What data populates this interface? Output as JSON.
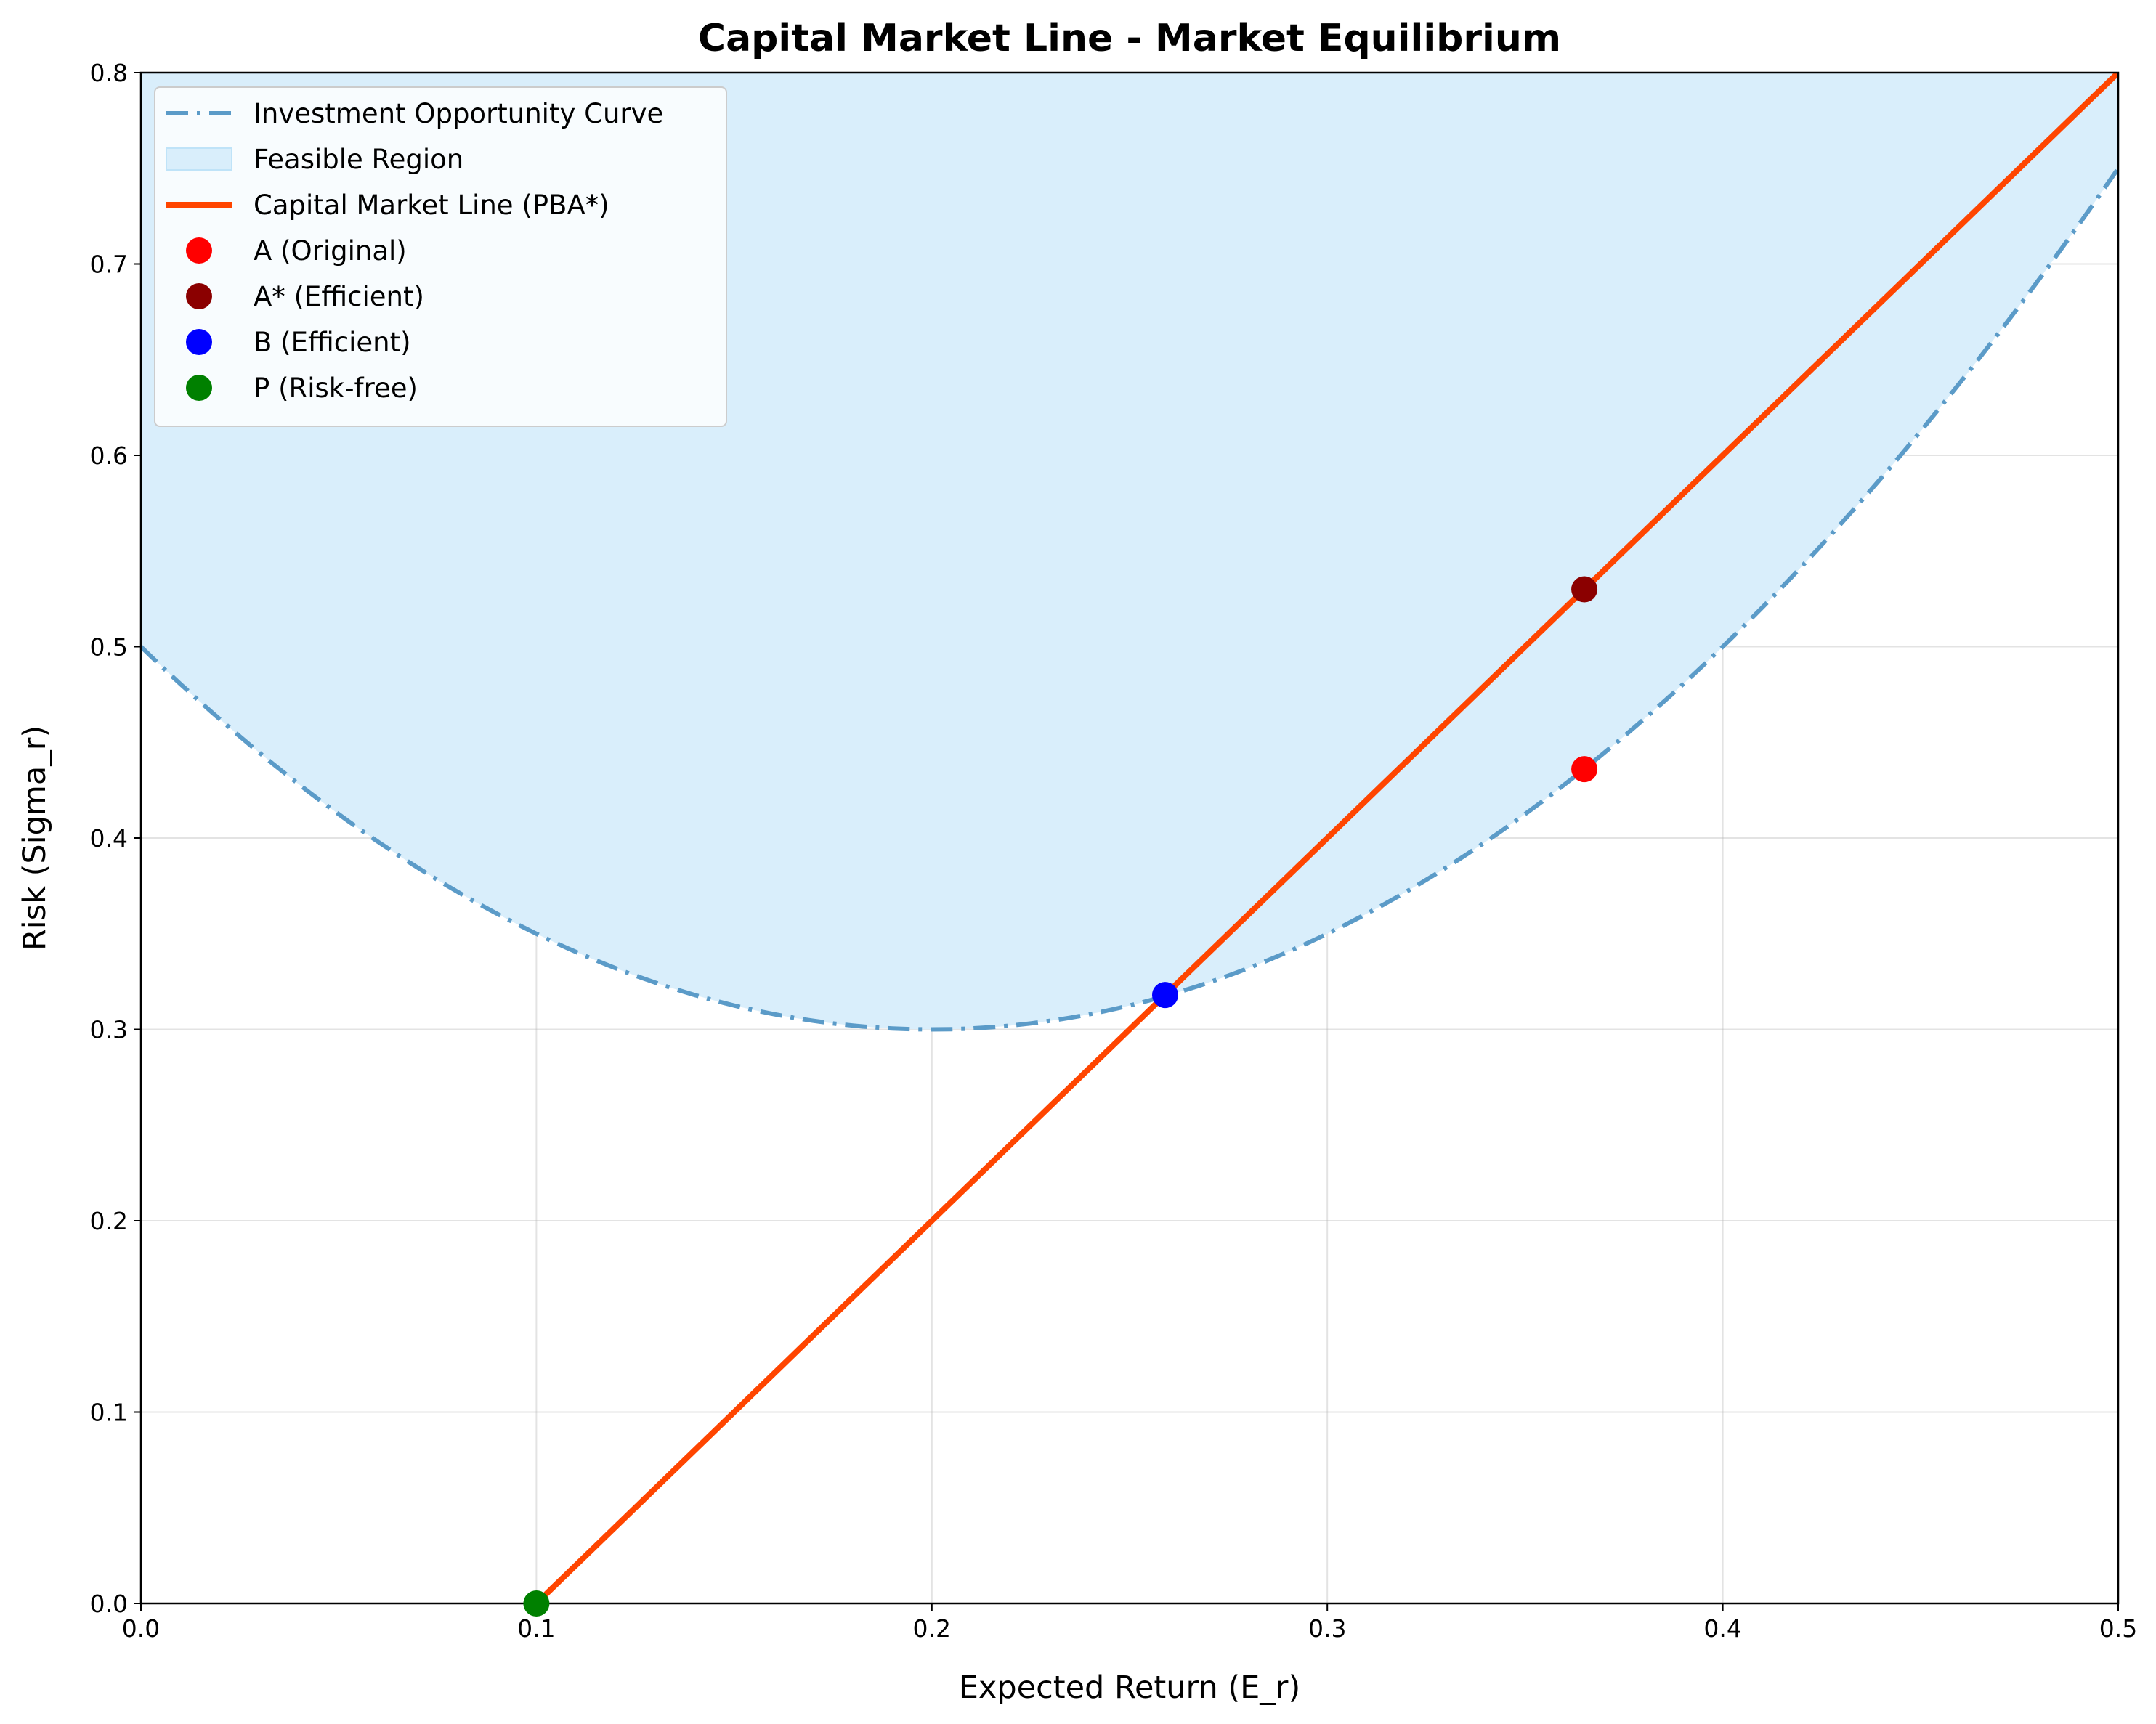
{
  "chart_data": {
    "type": "line",
    "title": "Capital Market Line - Market Equilibrium",
    "xlabel": "Expected Return (E_r)",
    "ylabel": "Risk (Sigma_r)",
    "xlim": [
      0.0,
      0.5
    ],
    "ylim": [
      0.0,
      0.8
    ],
    "xticks": [
      "0.0",
      "0.1",
      "0.2",
      "0.3",
      "0.4",
      "0.5"
    ],
    "yticks": [
      "0.0",
      "0.1",
      "0.2",
      "0.3",
      "0.4",
      "0.5",
      "0.6",
      "0.7",
      "0.8"
    ],
    "grid": true,
    "legend_position": "top-left",
    "series": [
      {
        "name": "Investment Opportunity Curve",
        "kind": "line",
        "style": "dashdot",
        "color": "#5b9bc8",
        "equation": "sigma = 5*(E - 0.2)^2 + 0.3",
        "x": [
          0.0,
          0.05,
          0.1,
          0.15,
          0.2,
          0.25,
          0.3,
          0.35,
          0.4,
          0.45,
          0.5
        ],
        "y": [
          0.5,
          0.4125,
          0.35,
          0.3125,
          0.3,
          0.3125,
          0.35,
          0.4125,
          0.5,
          0.6125,
          0.75
        ]
      },
      {
        "name": "Feasible Region",
        "kind": "area",
        "color": "#d9eefb",
        "description_bounds": "between curve and y=0.8"
      },
      {
        "name": "Capital Market Line (PBA*)",
        "kind": "line",
        "style": "solid",
        "color": "#ff4500",
        "x": [
          0.1,
          0.5
        ],
        "y": [
          0.0,
          0.8
        ]
      },
      {
        "name": "A (Original)",
        "kind": "point",
        "color": "#ff0000",
        "x": 0.365,
        "y": 0.436
      },
      {
        "name": "A* (Efficient)",
        "kind": "point",
        "color": "#8b0000",
        "x": 0.365,
        "y": 0.53
      },
      {
        "name": "B (Efficient)",
        "kind": "point",
        "color": "#0000ff",
        "x": 0.259,
        "y": 0.318
      },
      {
        "name": "P (Risk-free)",
        "kind": "point",
        "color": "#008000",
        "x": 0.1,
        "y": 0.0
      }
    ]
  }
}
